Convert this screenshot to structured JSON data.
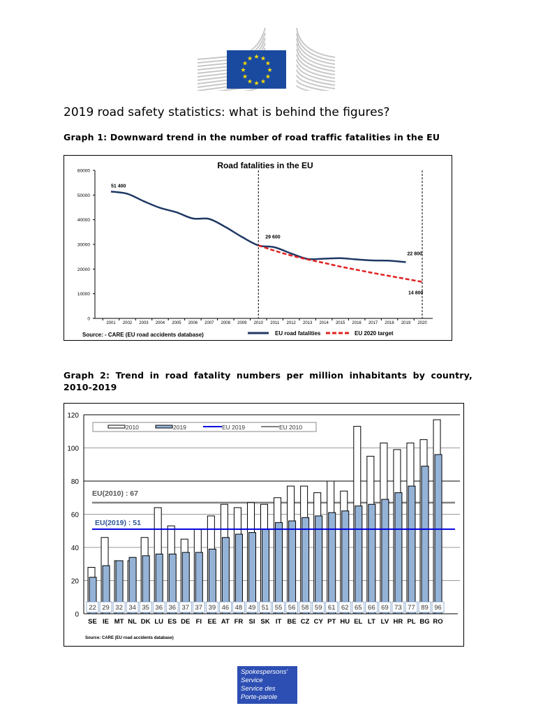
{
  "header": {
    "logo": "european-commission-logo"
  },
  "title": "2019 road safety statistics: what is behind the figures?",
  "graph1_heading": "Graph 1: Downward trend in the number of road traffic fatalities in the EU",
  "graph2_heading_line1": "Graph 2: Trend in road fatality numbers per million inhabitants by country,",
  "graph2_heading_line2": "2010-2019",
  "footer": {
    "lines": [
      "Spokespersons'",
      "Service",
      "Service des",
      "Porte-parole"
    ],
    "color": "#2d4fb3"
  },
  "chart_data": [
    {
      "type": "line",
      "title": "Road fatalities in the EU",
      "source": "Source: - CARE (EU road accidents database)",
      "x": [
        2001,
        2002,
        2003,
        2004,
        2005,
        2006,
        2007,
        2008,
        2009,
        2010,
        2011,
        2012,
        2013,
        2014,
        2015,
        2016,
        2017,
        2018,
        2019,
        2020
      ],
      "ylim": [
        0,
        60000
      ],
      "yticks": [
        0,
        10000,
        20000,
        30000,
        40000,
        50000,
        60000
      ],
      "series": [
        {
          "name": "EU road fatalities",
          "color": "#1f3864",
          "style": "solid",
          "x": [
            2001,
            2002,
            2003,
            2004,
            2005,
            2006,
            2007,
            2008,
            2009,
            2010,
            2011,
            2012,
            2013,
            2014,
            2015,
            2016,
            2017,
            2018,
            2019
          ],
          "values": [
            51400,
            50500,
            47500,
            44800,
            43000,
            40500,
            40300,
            37000,
            33000,
            29600,
            28800,
            26300,
            24100,
            24200,
            24400,
            23900,
            23500,
            23400,
            22800
          ]
        },
        {
          "name": "EU 2020  target",
          "color": "#e02020",
          "style": "dashed",
          "x": [
            2010,
            2011,
            2012,
            2013,
            2014,
            2015,
            2016,
            2017,
            2018,
            2019,
            2020
          ],
          "values": [
            29600,
            27400,
            25500,
            23900,
            22500,
            21000,
            19700,
            18400,
            17200,
            16000,
            14800
          ]
        }
      ],
      "annotations": [
        {
          "x": 2001,
          "y": 51400,
          "text": "51 400"
        },
        {
          "x": 2010,
          "y": 29600,
          "text": "29 600"
        },
        {
          "x": 2019,
          "y": 22800,
          "text": "22 800"
        },
        {
          "x": 2020,
          "y": 14800,
          "text": "14 800"
        }
      ],
      "vlines": [
        2010,
        2020
      ]
    },
    {
      "type": "bar",
      "categories": [
        "SE",
        "IE",
        "MT",
        "NL",
        "DK",
        "LU",
        "ES",
        "DE",
        "FI",
        "EE",
        "AT",
        "FR",
        "SI",
        "SK",
        "IT",
        "BE",
        "CZ",
        "CY",
        "PT",
        "HU",
        "EL",
        "LT",
        "LV",
        "HR",
        "PL",
        "BG",
        "RO"
      ],
      "ylim": [
        0,
        120
      ],
      "yticks": [
        0,
        20,
        40,
        60,
        80,
        100,
        120
      ],
      "series": [
        {
          "name": "2010",
          "color": "#ffffff",
          "values": [
            28,
            46,
            32,
            32,
            46,
            64,
            53,
            45,
            51,
            59,
            66,
            64,
            67,
            66,
            70,
            77,
            77,
            73,
            80,
            74,
            113,
            95,
            103,
            99,
            103,
            105,
            117
          ]
        },
        {
          "name": "2019",
          "color": "#95b3d7",
          "values": [
            22,
            29,
            32,
            34,
            35,
            36,
            36,
            37,
            37,
            39,
            46,
            48,
            49,
            51,
            55,
            56,
            58,
            59,
            61,
            62,
            65,
            66,
            69,
            73,
            77,
            89,
            96
          ]
        }
      ],
      "reference_lines": [
        {
          "name": "EU 2019",
          "value": 51,
          "label": "EU(2019) : 51",
          "color": "#0000e0"
        },
        {
          "name": "EU 2010",
          "value": 67,
          "label": "EU(2010) : 67",
          "color": "#808080"
        }
      ],
      "source": "Source: CARE (EU road accidents database)"
    }
  ]
}
